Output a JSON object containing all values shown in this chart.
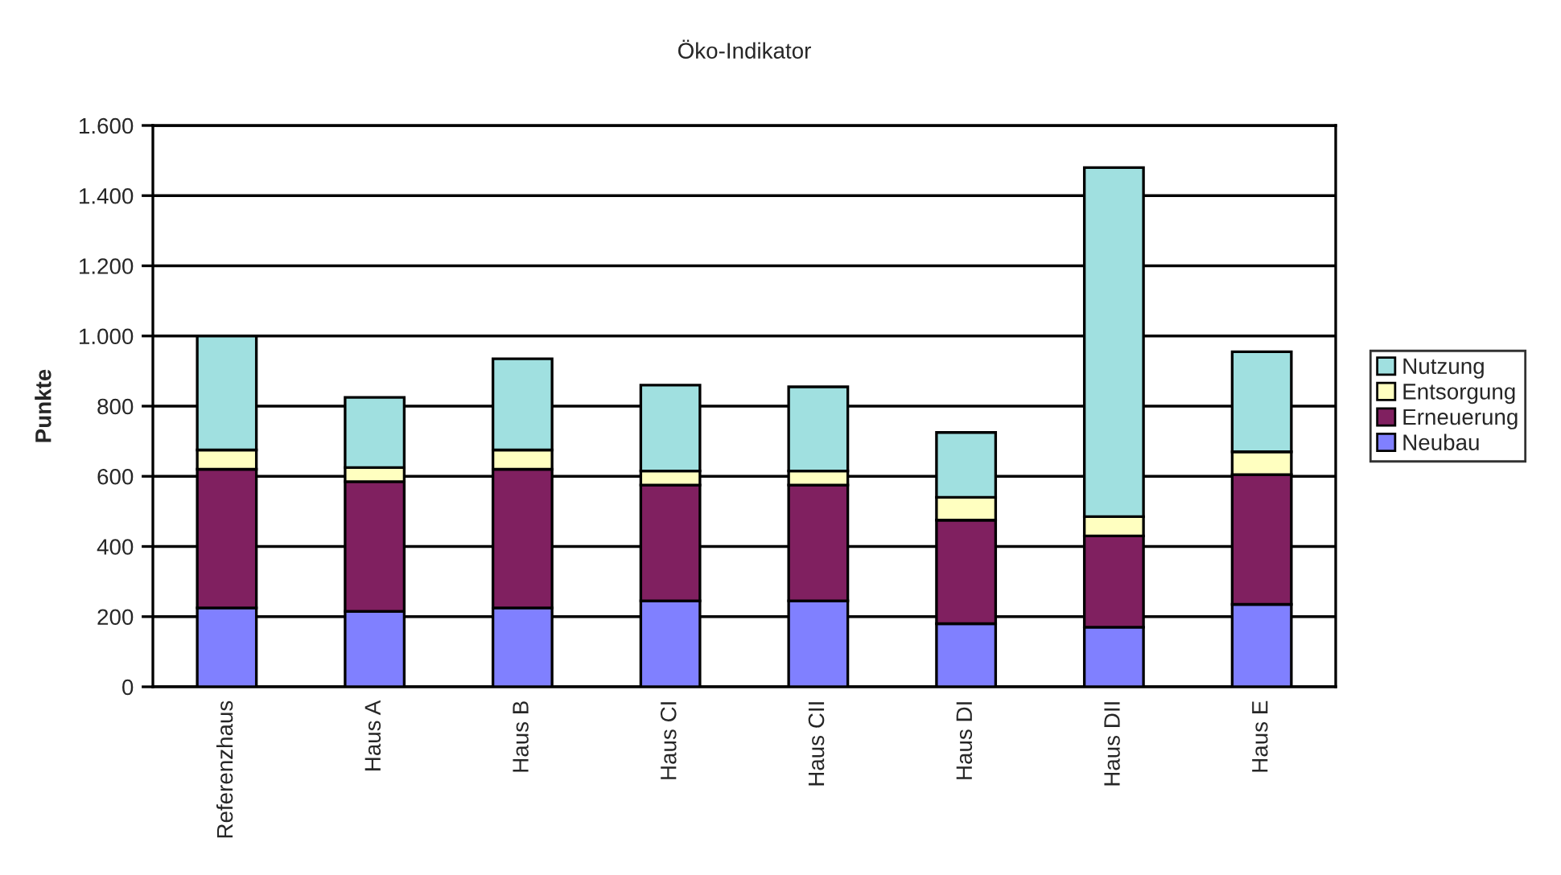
{
  "chart_data": {
    "type": "bar",
    "title": "Öko-Indikator",
    "ylabel": "Punkte",
    "categories": [
      "Referenzhaus",
      "Haus A",
      "Haus B",
      "Haus CI",
      "Haus CII",
      "Haus DI",
      "Haus DII",
      "Haus E"
    ],
    "stacked": true,
    "series": [
      {
        "name": "Neubau",
        "color": "#8080ff",
        "values": [
          225,
          215,
          225,
          245,
          245,
          180,
          170,
          235
        ]
      },
      {
        "name": "Erneuerung",
        "color": "#802060",
        "values": [
          395,
          370,
          395,
          330,
          330,
          295,
          260,
          370
        ]
      },
      {
        "name": "Entsorgung",
        "color": "#ffffc0",
        "values": [
          55,
          40,
          55,
          40,
          40,
          65,
          55,
          65
        ]
      },
      {
        "name": "Nutzung",
        "color": "#a0e0e0",
        "values": [
          325,
          200,
          260,
          245,
          240,
          185,
          995,
          285
        ]
      }
    ],
    "ylim": [
      0,
      1600
    ],
    "yticks": [
      0,
      200,
      400,
      600,
      800,
      {
        "value": 1000,
        "label": "1.000"
      },
      {
        "value": 1200,
        "label": "1.200"
      },
      {
        "value": 1400,
        "label": "1.400"
      },
      {
        "value": 1600,
        "label": "1.600"
      }
    ],
    "grid": "y",
    "legend": "right"
  }
}
